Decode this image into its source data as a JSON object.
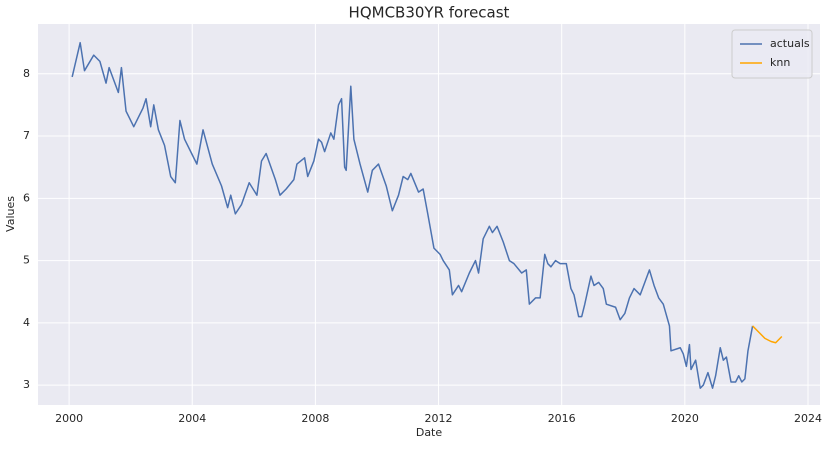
{
  "chart_data": {
    "type": "line",
    "title": "HQMCB30YR forecast",
    "x_label": "Date",
    "y_label": "Values",
    "xlim": [
      1998.99,
      2024.39
    ],
    "ylim": [
      2.68,
      8.8
    ],
    "xticks": [
      2000,
      2004,
      2008,
      2012,
      2016,
      2020,
      2024
    ],
    "yticks": [
      3,
      4,
      5,
      6,
      7,
      8
    ],
    "grid": true,
    "legend": "upper right",
    "series": [
      {
        "name": "actuals",
        "color": "#4c72b0",
        "x": [
          2000.1,
          2000.36,
          2000.5,
          2000.8,
          2001.0,
          2001.2,
          2001.3,
          2001.6,
          2001.7,
          2001.85,
          2002.1,
          2002.4,
          2002.5,
          2002.65,
          2002.75,
          2002.9,
          2003.1,
          2003.3,
          2003.45,
          2003.6,
          2003.75,
          2004.0,
          2004.15,
          2004.35,
          2004.65,
          2004.95,
          2005.15,
          2005.25,
          2005.4,
          2005.6,
          2005.85,
          2006.1,
          2006.25,
          2006.4,
          2006.7,
          2006.85,
          2007.05,
          2007.3,
          2007.4,
          2007.65,
          2007.75,
          2007.95,
          2008.1,
          2008.2,
          2008.3,
          2008.5,
          2008.6,
          2008.75,
          2008.85,
          2008.95,
          2009.0,
          2009.15,
          2009.25,
          2009.45,
          2009.7,
          2009.85,
          2010.05,
          2010.3,
          2010.5,
          2010.7,
          2010.85,
          2011.0,
          2011.1,
          2011.35,
          2011.5,
          2011.65,
          2011.85,
          2012.05,
          2012.15,
          2012.35,
          2012.45,
          2012.65,
          2012.75,
          2013.0,
          2013.2,
          2013.3,
          2013.45,
          2013.65,
          2013.75,
          2013.9,
          2014.1,
          2014.3,
          2014.45,
          2014.7,
          2014.85,
          2014.95,
          2015.15,
          2015.3,
          2015.45,
          2015.55,
          2015.65,
          2015.8,
          2015.95,
          2016.15,
          2016.3,
          2016.4,
          2016.55,
          2016.65,
          2016.75,
          2016.95,
          2017.05,
          2017.2,
          2017.35,
          2017.45,
          2017.75,
          2017.9,
          2018.05,
          2018.2,
          2018.35,
          2018.55,
          2018.7,
          2018.85,
          2019.0,
          2019.15,
          2019.3,
          2019.5,
          2019.55,
          2019.85,
          2019.95,
          2020.05,
          2020.15,
          2020.2,
          2020.35,
          2020.5,
          2020.6,
          2020.75,
          2020.9,
          2021.0,
          2021.15,
          2021.25,
          2021.35,
          2021.5,
          2021.65,
          2021.75,
          2021.85,
          2021.95,
          2022.05,
          2022.2
        ],
        "values": [
          7.95,
          8.5,
          8.05,
          8.3,
          8.2,
          7.85,
          8.1,
          7.7,
          8.1,
          7.4,
          7.15,
          7.45,
          7.6,
          7.15,
          7.5,
          7.1,
          6.85,
          6.35,
          6.25,
          7.25,
          6.95,
          6.7,
          6.55,
          7.1,
          6.55,
          6.2,
          5.85,
          6.05,
          5.75,
          5.9,
          6.25,
          6.05,
          6.6,
          6.72,
          6.3,
          6.05,
          6.15,
          6.3,
          6.55,
          6.65,
          6.35,
          6.6,
          6.95,
          6.9,
          6.75,
          7.05,
          6.95,
          7.5,
          7.6,
          6.5,
          6.45,
          7.8,
          6.95,
          6.55,
          6.1,
          6.45,
          6.55,
          6.2,
          5.8,
          6.05,
          6.35,
          6.3,
          6.4,
          6.1,
          6.15,
          5.75,
          5.2,
          5.1,
          5.0,
          4.85,
          4.45,
          4.6,
          4.5,
          4.8,
          5.0,
          4.8,
          5.35,
          5.55,
          5.45,
          5.55,
          5.3,
          5.0,
          4.95,
          4.8,
          4.85,
          4.3,
          4.4,
          4.4,
          5.1,
          4.95,
          4.9,
          5.0,
          4.95,
          4.95,
          4.55,
          4.45,
          4.1,
          4.1,
          4.3,
          4.75,
          4.6,
          4.65,
          4.55,
          4.3,
          4.25,
          4.05,
          4.15,
          4.4,
          4.55,
          4.45,
          4.65,
          4.85,
          4.6,
          4.4,
          4.3,
          3.95,
          3.55,
          3.6,
          3.5,
          3.3,
          3.65,
          3.25,
          3.4,
          2.95,
          3.0,
          3.2,
          2.95,
          3.15,
          3.6,
          3.4,
          3.45,
          3.05,
          3.05,
          3.15,
          3.05,
          3.1,
          3.55,
          3.95
        ]
      },
      {
        "name": "knn",
        "color": "#ffa500",
        "x": [
          2022.2,
          2022.4,
          2022.6,
          2022.8,
          2022.95,
          2023.15
        ],
        "values": [
          3.95,
          3.85,
          3.75,
          3.7,
          3.68,
          3.78
        ]
      }
    ]
  }
}
